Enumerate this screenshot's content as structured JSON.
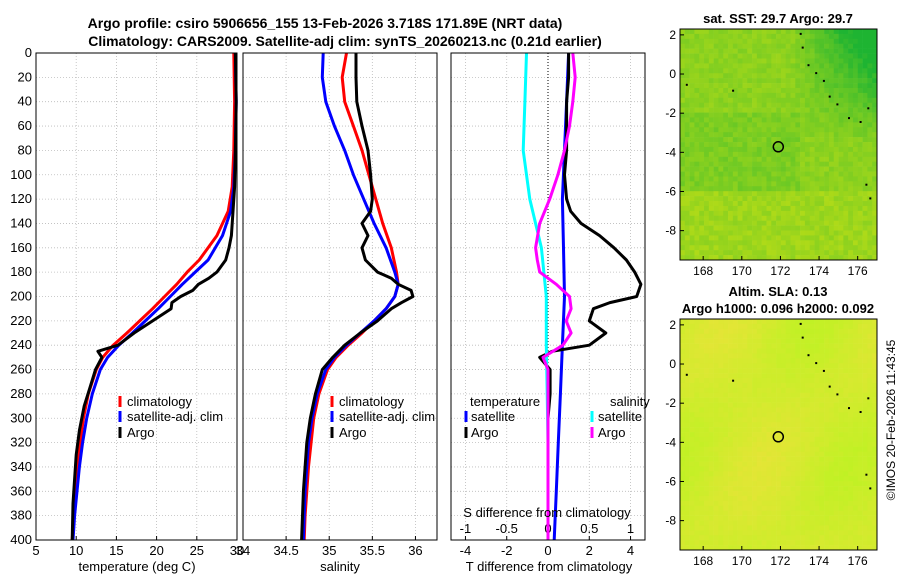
{
  "page": {
    "title_line1": "Argo profile: csiro 5906656_155 13-Feb-2026 3.718S 171.89E (NRT data)",
    "title_line2": "Climatology: CARS2009. Satellite-adj clim: synTS_20260213.nc (0.21d earlier)",
    "copyright": "©IMOS 20-Feb-2026 11:43:45"
  },
  "colors": {
    "climatology": "#ff0000",
    "satellite": "#0000ff",
    "argo": "#000000",
    "s_satellite": "#00ffff",
    "s_argo": "#ff00ff",
    "grid": "#bbbbbb"
  },
  "chart_data": [
    {
      "type": "line",
      "name": "temperature",
      "xlabel": "temperature (deg C)",
      "xlim": [
        5,
        30
      ],
      "ylim": [
        0,
        400
      ],
      "xticks": [
        "5",
        "10",
        "15",
        "20",
        "25",
        "30"
      ],
      "depth_ticks": [
        "0",
        "20",
        "40",
        "60",
        "80",
        "100",
        "120",
        "140",
        "160",
        "180",
        "200",
        "220",
        "240",
        "260",
        "280",
        "300",
        "320",
        "340",
        "360",
        "380",
        "400"
      ],
      "legend": [
        "climatology",
        "satellite-adj. clim",
        "Argo"
      ],
      "series": [
        {
          "name": "climatology",
          "depth": [
            0,
            40,
            80,
            110,
            130,
            150,
            160,
            170,
            180,
            190,
            200,
            210,
            220,
            230,
            240,
            250,
            260,
            280,
            300,
            320,
            340,
            360,
            380,
            400
          ],
          "values": [
            29.6,
            29.7,
            29.6,
            29.4,
            28.9,
            27.5,
            26.4,
            25.3,
            23.8,
            22.5,
            21.0,
            19.5,
            17.9,
            16.3,
            14.6,
            13.3,
            12.5,
            11.5,
            10.9,
            10.5,
            10.2,
            9.9,
            9.7,
            9.5
          ]
        },
        {
          "name": "satellite-adj. clim",
          "depth": [
            0,
            40,
            80,
            110,
            130,
            150,
            160,
            170,
            180,
            190,
            200,
            210,
            220,
            230,
            240,
            250,
            260,
            280,
            300,
            320,
            340,
            360,
            380,
            400
          ],
          "values": [
            29.8,
            29.9,
            29.8,
            29.6,
            29.2,
            28.2,
            27.3,
            26.4,
            24.8,
            23.2,
            21.7,
            20.2,
            18.6,
            17.0,
            15.3,
            13.9,
            13.0,
            12.0,
            11.3,
            10.8,
            10.4,
            10.1,
            9.8,
            9.6
          ]
        },
        {
          "name": "Argo",
          "depth": [
            0,
            40,
            80,
            110,
            130,
            150,
            160,
            170,
            180,
            185,
            190,
            195,
            200,
            205,
            210,
            220,
            230,
            240,
            245,
            250,
            260,
            275,
            290,
            310,
            330,
            350,
            370,
            400
          ],
          "values": [
            29.8,
            29.9,
            29.8,
            29.7,
            29.5,
            29.3,
            29.0,
            28.6,
            27.5,
            26.5,
            25.2,
            24.5,
            23.0,
            21.9,
            21.8,
            19.5,
            17.2,
            15.2,
            12.7,
            13.2,
            12.4,
            11.7,
            11.0,
            10.4,
            10.0,
            9.8,
            9.6,
            9.5
          ]
        }
      ]
    },
    {
      "type": "line",
      "name": "salinity",
      "xlabel": "salinity",
      "xlim": [
        34,
        36.25
      ],
      "ylim": [
        0,
        400
      ],
      "xticks": [
        "34",
        "34.5",
        "35",
        "35.5",
        "36"
      ],
      "legend": [
        "climatology",
        "satellite-adj. clim",
        "Argo"
      ],
      "series": [
        {
          "name": "climatology",
          "depth": [
            0,
            20,
            40,
            60,
            80,
            100,
            120,
            140,
            160,
            180,
            190,
            200,
            210,
            220,
            230,
            240,
            250,
            260,
            280,
            300,
            320,
            340,
            360,
            380,
            400
          ],
          "values": [
            35.2,
            35.15,
            35.18,
            35.28,
            35.38,
            35.46,
            35.54,
            35.62,
            35.72,
            35.78,
            35.8,
            35.76,
            35.66,
            35.52,
            35.38,
            35.22,
            35.08,
            34.98,
            34.88,
            34.82,
            34.79,
            34.76,
            34.74,
            34.72,
            34.71
          ]
        },
        {
          "name": "satellite-adj. clim",
          "depth": [
            0,
            20,
            40,
            60,
            80,
            100,
            120,
            140,
            160,
            180,
            190,
            200,
            210,
            220,
            230,
            240,
            250,
            260,
            280,
            300,
            320,
            340,
            360,
            380,
            400
          ],
          "values": [
            34.93,
            34.92,
            34.96,
            35.06,
            35.18,
            35.28,
            35.4,
            35.52,
            35.66,
            35.76,
            35.8,
            35.76,
            35.66,
            35.52,
            35.36,
            35.2,
            35.06,
            34.96,
            34.86,
            34.8,
            34.76,
            34.74,
            34.72,
            34.71,
            34.7
          ]
        },
        {
          "name": "Argo",
          "depth": [
            0,
            20,
            40,
            60,
            80,
            100,
            120,
            130,
            140,
            150,
            160,
            170,
            180,
            185,
            190,
            195,
            200,
            205,
            210,
            220,
            230,
            240,
            250,
            260,
            280,
            300,
            320,
            340,
            360,
            380,
            400
          ],
          "values": [
            35.31,
            35.31,
            35.32,
            35.38,
            35.45,
            35.48,
            35.5,
            35.48,
            35.38,
            35.45,
            35.38,
            35.42,
            35.56,
            35.72,
            35.8,
            35.95,
            35.97,
            35.84,
            35.72,
            35.56,
            35.36,
            35.18,
            35.04,
            34.92,
            34.84,
            34.78,
            34.74,
            34.72,
            34.7,
            34.69,
            34.68
          ]
        }
      ]
    },
    {
      "type": "line",
      "name": "difference",
      "xlabel": "T difference from climatology",
      "xlabel_top": "S difference from climatology",
      "xlim": [
        -4.7,
        4.7
      ],
      "xticks": [
        "-4",
        "-2",
        "0",
        "2",
        "4"
      ],
      "xticks_top": [
        "-1",
        "-0.5",
        "0",
        "0.5",
        "1"
      ],
      "xlim_top": [
        -1.175,
        1.175
      ],
      "legend_t_title": "temperature",
      "legend_s_title": "salinity",
      "legend_t": [
        "satellite",
        "Argo"
      ],
      "legend_s": [
        "satellite",
        "Argo"
      ],
      "series": [
        {
          "name": "T satellite",
          "axis": "bottom",
          "depth": [
            0,
            40,
            80,
            120,
            160,
            200,
            240,
            280,
            320,
            360,
            400
          ],
          "values": [
            1.0,
            0.9,
            0.8,
            0.7,
            0.75,
            0.8,
            0.7,
            0.6,
            0.5,
            0.4,
            0.3
          ]
        },
        {
          "name": "T Argo",
          "axis": "bottom",
          "depth": [
            0,
            20,
            40,
            60,
            80,
            100,
            120,
            130,
            140,
            150,
            160,
            170,
            180,
            190,
            200,
            205,
            210,
            220,
            230,
            240,
            245,
            250,
            260,
            280,
            300,
            320,
            340,
            360,
            380,
            400
          ],
          "values": [
            1.0,
            1.0,
            0.9,
            0.9,
            0.9,
            0.8,
            0.9,
            1.1,
            1.6,
            2.5,
            3.2,
            3.8,
            4.2,
            4.5,
            4.3,
            3.0,
            2.2,
            2.0,
            2.8,
            2.0,
            0.2,
            -0.4,
            0.1,
            0.1,
            0.0,
            0.0,
            0.0,
            0.0,
            0.0,
            0.0
          ]
        },
        {
          "name": "S satellite",
          "axis": "top",
          "depth": [
            0,
            40,
            80,
            120,
            160,
            200,
            240,
            280,
            320,
            360,
            400
          ],
          "values": [
            -0.26,
            -0.28,
            -0.3,
            -0.22,
            -0.08,
            -0.02,
            -0.02,
            -0.01,
            0.0,
            0.0,
            0.0
          ]
        },
        {
          "name": "S Argo",
          "axis": "top",
          "depth": [
            0,
            20,
            40,
            60,
            80,
            100,
            120,
            140,
            160,
            170,
            180,
            190,
            200,
            210,
            220,
            230,
            240,
            250,
            260,
            280,
            300,
            320,
            340,
            360,
            380,
            400
          ],
          "values": [
            0.3,
            0.33,
            0.3,
            0.26,
            0.2,
            0.12,
            0.02,
            -0.1,
            -0.15,
            -0.13,
            -0.1,
            0.1,
            0.26,
            0.28,
            0.22,
            0.28,
            0.18,
            -0.06,
            0.0,
            0.0,
            0.0,
            0.0,
            0.0,
            0.0,
            0.0,
            0.0
          ]
        }
      ]
    },
    {
      "type": "heatmap",
      "name": "sat-sst-map",
      "title": "sat. SST: 29.7 Argo: 29.7",
      "xticks": [
        "168",
        "170",
        "172",
        "174",
        "176"
      ],
      "yticks": [
        "2",
        "0",
        "-2",
        "-4",
        "-6",
        "-8"
      ],
      "xlim": [
        166.8,
        177.0
      ],
      "ylim": [
        -9.5,
        2.3
      ],
      "profile_location": [
        171.89,
        -3.718
      ]
    },
    {
      "type": "heatmap",
      "name": "altim-sla-map",
      "title_line1": "Altim. SLA: 0.13",
      "title_line2": "Argo h1000: 0.096 h2000: 0.092",
      "xticks": [
        "168",
        "170",
        "172",
        "174",
        "176"
      ],
      "yticks": [
        "2",
        "0",
        "-2",
        "-4",
        "-6",
        "-8"
      ],
      "xlim": [
        166.8,
        177.0
      ],
      "ylim": [
        -9.5,
        2.3
      ],
      "profile_location": [
        171.89,
        -3.718
      ]
    }
  ]
}
